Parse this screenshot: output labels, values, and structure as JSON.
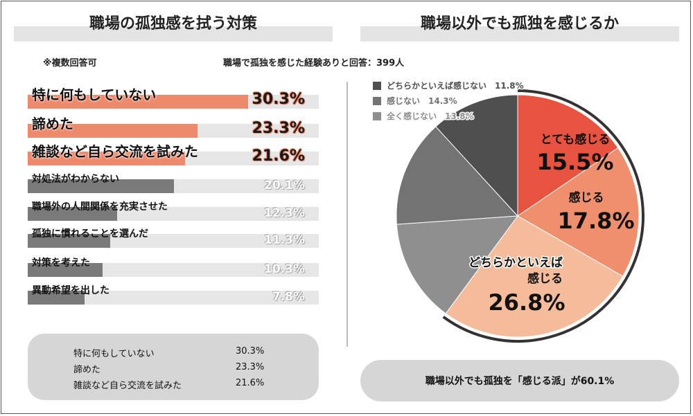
{
  "left_panel": {
    "title": "職場の孤独感を拭う対策",
    "note": "※複数回答可",
    "summary": [
      {
        "label": "特に何もしていない",
        "value": "30.3%"
      },
      {
        "label": "諦めた",
        "value": "23.3%"
      },
      {
        "label": "雑談など自ら交流を試みた",
        "value": "21.6%"
      }
    ]
  },
  "right_panel": {
    "title": "職場以外でも孤独を感じるか",
    "respondents": "職場で孤独を感じた経験ありと回答：399人",
    "conclusion": "職場以外でも孤独を「感じる派」が60.1%"
  },
  "colors": {
    "highlight_bar": "#ee8a6c",
    "normal_bar": "#7a7a7a",
    "track": "#e6e6e6",
    "pie_very": "#e8533f",
    "pie_feel": "#ef8f6d",
    "pie_somewhat": "#f4bc9b",
    "pie_somewhat_not": "#4f4f4f",
    "pie_not": "#737373",
    "pie_not_at_all": "#8f8f8f"
  },
  "chart_data": [
    {
      "type": "bar",
      "title": "職場の孤独感を拭う対策",
      "categories": [
        "特に何もしていない",
        "諦めた",
        "雑談など自ら交流を試みた",
        "対処法がわからない",
        "職場外の人間関係を充実させた",
        "孤独に慣れることを選んだ",
        "対策を考えた",
        "異動希望を出した"
      ],
      "values": [
        30.3,
        23.3,
        21.6,
        20.1,
        12.3,
        11.3,
        10.3,
        7.8
      ],
      "value_labels": [
        "30.3%",
        "23.3%",
        "21.6%",
        "20.1%",
        "12.3%",
        "11.3%",
        "10.3%",
        "7.8%"
      ],
      "highlighted": [
        true,
        true,
        true,
        false,
        false,
        false,
        false,
        false
      ],
      "xlim": [
        0,
        40
      ],
      "orientation": "horizontal"
    },
    {
      "type": "pie",
      "title": "職場以外でも孤独を感じるか",
      "slices": [
        {
          "label": "とても感じる",
          "value": 15.5,
          "display": "15.5%",
          "color_key": "pie_very"
        },
        {
          "label": "感じる",
          "value": 17.8,
          "display": "17.8%",
          "color_key": "pie_feel"
        },
        {
          "label": "どちらかといえば感じる",
          "value": 26.8,
          "display": "26.8%",
          "color_key": "pie_somewhat"
        },
        {
          "label": "全く感じない",
          "value": 13.8,
          "display": "13.8%",
          "color_key": "pie_not_at_all"
        },
        {
          "label": "感じない",
          "value": 14.3,
          "display": "14.3%",
          "color_key": "pie_not"
        },
        {
          "label": "どちらかといえば感じない",
          "value": 11.8,
          "display": "11.8%",
          "color_key": "pie_somewhat_not"
        }
      ],
      "legend": [
        {
          "label": "どちらかといえば感じない",
          "value": "11.8%",
          "color_key": "pie_somewhat_not"
        },
        {
          "label": "感じない",
          "value": "14.3%",
          "color_key": "pie_not"
        },
        {
          "label": "全く感じない",
          "value": "13.8%",
          "color_key": "pie_not_at_all"
        }
      ],
      "legend_position": "top-left"
    }
  ]
}
